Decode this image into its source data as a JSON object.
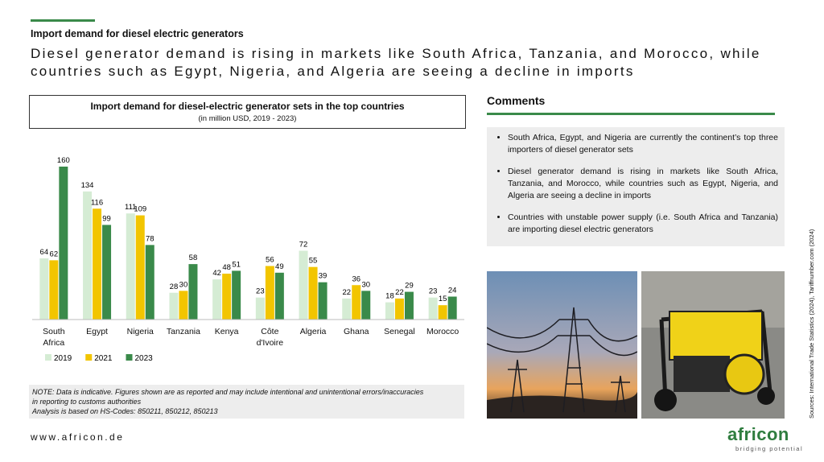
{
  "header": {
    "kicker": "Import demand for diesel electric generators",
    "headline": "Diesel generator demand is rising in markets like South Africa, Tanzania, and Morocco, while countries such as Egypt, Nigeria, and Algeria are seeing a decline in imports"
  },
  "chart_data": {
    "type": "bar",
    "title": "Import demand for diesel-electric generator sets in the top countries",
    "subtitle": "(in million USD, 2019 - 2023)",
    "categories": [
      "South Africa",
      "Egypt",
      "Nigeria",
      "Tanzania",
      "Kenya",
      "Côte d'Ivoire",
      "Algeria",
      "Ghana",
      "Senegal",
      "Morocco"
    ],
    "series": [
      {
        "name": "2019",
        "color": "#d5ecd4",
        "values": [
          64,
          134,
          111,
          28,
          42,
          23,
          72,
          22,
          18,
          23
        ]
      },
      {
        "name": "2021",
        "color": "#f2c500",
        "values": [
          62,
          116,
          109,
          30,
          48,
          56,
          55,
          36,
          22,
          15
        ]
      },
      {
        "name": "2023",
        "color": "#3a8a4a",
        "values": [
          160,
          99,
          78,
          58,
          51,
          49,
          39,
          30,
          29,
          24
        ]
      }
    ],
    "legend": "bottom-left"
  },
  "note": {
    "lines": [
      "NOTE: Data is indicative. Figures shown are as reported and may include intentional and unintentional errors/inaccuracies",
      "in reporting to customs authorities",
      "Analysis is based on HS-Codes: 850211, 850212, 850213"
    ]
  },
  "comments": {
    "title": "Comments",
    "items": [
      "South Africa, Egypt, and Nigeria are currently the continent’s top three importers of diesel generator sets",
      "Diesel generator demand is rising in markets like South Africa, Tanzania, and Morocco, while countries such as Egypt, Nigeria, and Algeria are seeing a decline in imports",
      "Countries with unstable power supply (i.e. South Africa and Tanzania) are importing diesel electric generators"
    ]
  },
  "footer": {
    "website": "www.africon.de",
    "sources": "Sources:  International Trade Statistics (2024), Tariffnumber.com (2024)",
    "logo": "africon",
    "tagline": "bridging potential"
  }
}
